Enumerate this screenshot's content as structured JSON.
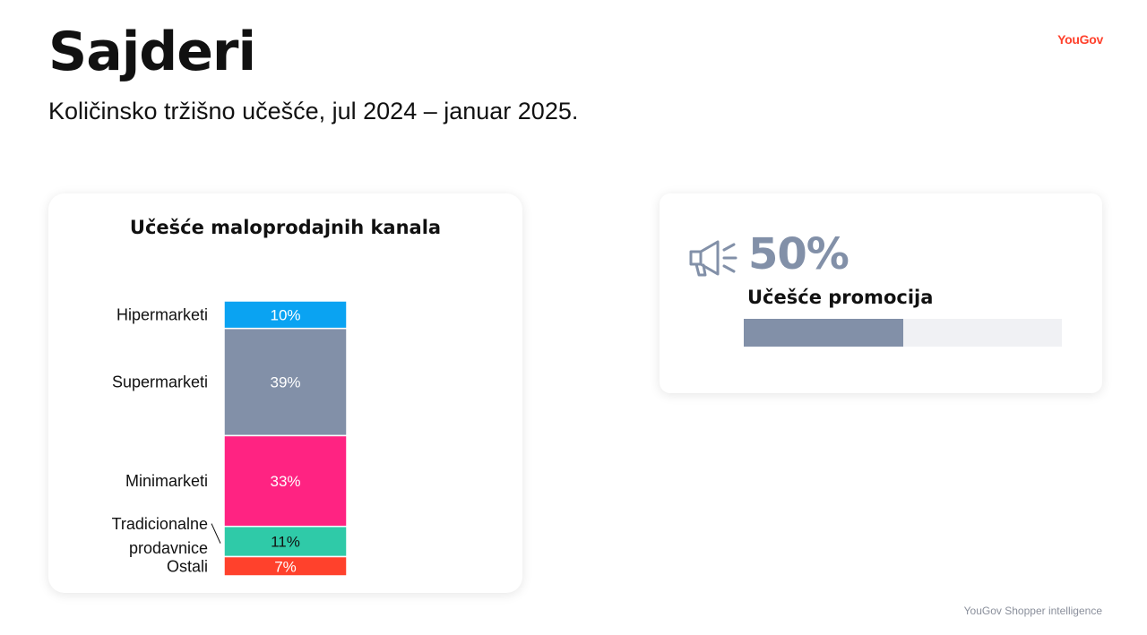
{
  "title": "Sajderi",
  "subtitle": "Količinsko tržišno učešće, jul 2024 – januar 2025.",
  "logo": "YouGov",
  "source": "YouGov Shopper intelligence",
  "chart_card": {
    "title": "Učešće maloprodajnih kanala"
  },
  "chart_data": {
    "type": "bar",
    "stacked": true,
    "title": "Učešće maloprodajnih kanala",
    "categories": [
      "Hipermarketi",
      "Supermarketi",
      "Minimarketi",
      "Tradicionalne prodavnice",
      "Ostali"
    ],
    "category_lines": [
      [
        "Hipermarketi"
      ],
      [
        "Supermarketi"
      ],
      [
        "Minimarketi"
      ],
      [
        "Tradicionalne",
        "prodavnice"
      ],
      [
        "Ostali"
      ]
    ],
    "values": [
      10,
      39,
      33,
      11,
      7
    ],
    "value_labels": [
      "10%",
      "39%",
      "33%",
      "11%",
      "7%"
    ],
    "colors": [
      "#0aa3f2",
      "#8290a8",
      "#ff2382",
      "#2fcaa8",
      "#ff412c"
    ],
    "label_colors": [
      "#ffffff",
      "#ffffff",
      "#ffffff",
      "#111111",
      "#ffffff"
    ],
    "unit": "%"
  },
  "promo": {
    "value": "50%",
    "label": "Učešće promocija",
    "fraction": 0.5,
    "icon": "megaphone-icon",
    "color": "#8290a8"
  }
}
